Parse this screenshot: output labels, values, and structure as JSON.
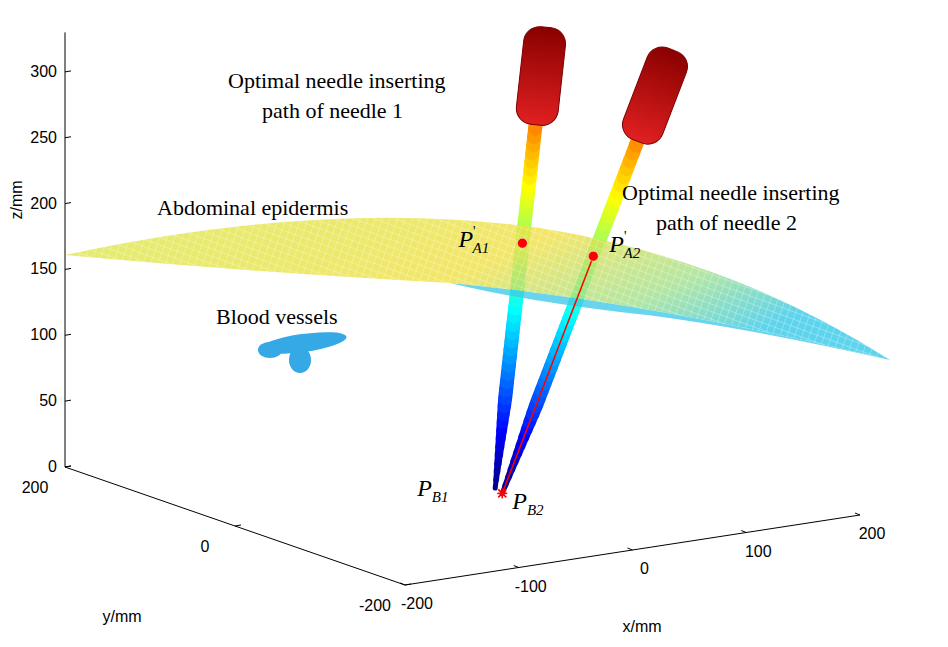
{
  "chart_data": {
    "type": "scatter3d",
    "xlabel": "x/mm",
    "ylabel": "y/mm",
    "zlabel": "z/mm",
    "xlim": [
      -200,
      200
    ],
    "ylim": [
      -200,
      200
    ],
    "zlim": [
      0,
      330
    ],
    "xticks": [
      -200,
      -100,
      0,
      100,
      200
    ],
    "yticks": [
      -200,
      0,
      200
    ],
    "zticks": [
      0,
      50,
      100,
      150,
      200,
      250,
      300
    ],
    "grid": false,
    "points": [
      {
        "name": "P",
        "prime": "'",
        "subscript": "A1",
        "x": 90,
        "y": 50,
        "z": 165,
        "color": "#ff0000",
        "marker": "dot"
      },
      {
        "name": "P",
        "prime": "'",
        "subscript": "A2",
        "x": 115,
        "y": 0,
        "z": 163,
        "color": "#ff0000",
        "marker": "dot"
      },
      {
        "name": "P",
        "subscript": "B1",
        "x": 25,
        "y": -5,
        "z": 0,
        "color": "#ff0000",
        "marker": "none"
      },
      {
        "name": "P",
        "subscript": "B2",
        "x": 20,
        "y": -20,
        "z": 0,
        "color": "#ff0000",
        "marker": "asterisk"
      }
    ],
    "paths": [
      {
        "label": [
          "Optimal needle inserting",
          "path of needle 1"
        ],
        "tip": "B1",
        "entry": "A1"
      },
      {
        "label": [
          "Optimal needle inserting",
          "path of needle 2"
        ],
        "tip": "B2",
        "entry": "A2"
      }
    ],
    "segments": [
      {
        "from": "B2",
        "to": "A2",
        "color": "#ff0000"
      }
    ],
    "annotations": [
      "Abdominal epidermis",
      "Blood vessels"
    ]
  }
}
